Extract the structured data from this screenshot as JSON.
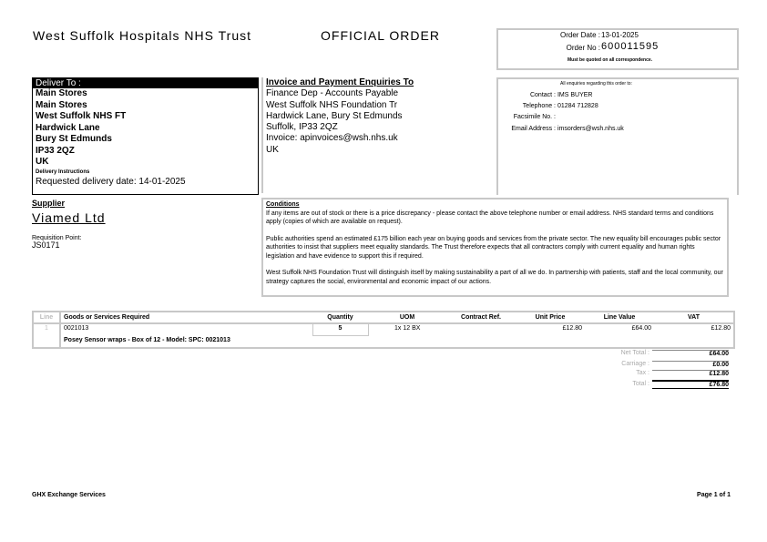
{
  "header": {
    "trust_name": "West Suffolk Hospitals NHS Trust",
    "title": "OFFICIAL ORDER",
    "order_date_label": "Order Date :",
    "order_date": "13-01-2025",
    "order_no_label": "Order No :",
    "order_no": "600011595",
    "order_note": "Must be quoted on all correspondence."
  },
  "deliver": {
    "heading": "Deliver To :",
    "lines": [
      "Main Stores",
      "Main Stores",
      "West Suffolk NHS FT",
      "Hardwick Lane",
      "Bury St Edmunds",
      "IP33 2QZ",
      "UK"
    ],
    "instructions_label": "Delivery Instructions",
    "instructions": "Requested delivery date: 14-01-2025"
  },
  "invoice": {
    "heading": "Invoice and Payment Enquiries To",
    "lines": [
      "Finance Dep - Accounts Payable",
      "West Suffolk NHS Foundation Tr",
      "Hardwick Lane, Bury St Edmunds",
      "Suffolk, IP33 2QZ",
      "Invoice: apinvoices@wsh.nhs.uk",
      "UK"
    ]
  },
  "contact": {
    "heading": "All enquiries regarding this order to:",
    "contact_label": "Contact :",
    "contact": "IMS BUYER",
    "telephone_label": "Telephone :",
    "telephone": "01284 712828",
    "fax_label": "Facsimile No. :",
    "fax": "",
    "email_label": "Email Address :",
    "email": "imsorders@wsh.nhs.uk"
  },
  "supplier": {
    "heading": "Supplier",
    "name": "Viamed Ltd",
    "req_label": "Requisition Point:",
    "req_point": "JS0171"
  },
  "conditions": {
    "heading": "Conditions",
    "paragraphs": [
      "If any items are out of stock or there is a price discrepancy - please contact the above telephone number or email address. NHS standard terms and conditions apply (copies of which are available on request).",
      "Public authorities spend an estimated £175 billion each year on buying goods and services from the private sector. The new equality bill encourages public sector authorities to insist that suppliers meet equality standards. The Trust therefore expects that all contractors comply with current equality and human rights legislation and have evidence to support this if required.",
      "West Suffolk NHS Foundation Trust will distinguish itself by making sustainability a part of all we do. In partnership with patients, staff and the local community, our strategy captures the social, environmental and economic impact of our actions."
    ]
  },
  "table": {
    "headers": [
      "Line",
      "Goods or Services Required",
      "Quantity",
      "UOM",
      "Contract Ref.",
      "Unit Price",
      "Line Value",
      "VAT"
    ],
    "rows": [
      {
        "line": "1",
        "code": "0021013",
        "description": "Posey Sensor wraps - Box of 12 - Model: SPC: 0021013",
        "quantity": "5",
        "uom": "1x 12 BX",
        "contract_ref": "",
        "unit_price": "£12.80",
        "line_value": "£64.00",
        "vat": "£12.80"
      }
    ]
  },
  "totals": {
    "net_label": "Net Total :",
    "net": "£64.00",
    "carriage_label": "Carriage :",
    "carriage": "£0.00",
    "tax_label": "Tax :",
    "tax": "£12.80",
    "total_label": "Total :",
    "total": "£76.80"
  },
  "footer": {
    "left": "GHX Exchange Services",
    "right": "Page 1 of 1"
  }
}
